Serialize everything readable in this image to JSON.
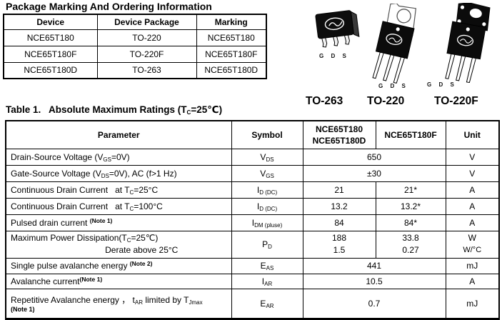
{
  "heading": "Package Marking And Ordering Information",
  "ordering_table": {
    "headers": [
      "Device",
      "Device Package",
      "Marking"
    ],
    "rows": [
      [
        "NCE65T180",
        "TO-220",
        "NCE65T180"
      ],
      [
        "NCE65T180F",
        "TO-220F",
        "NCE65T180F"
      ],
      [
        "NCE65T180D",
        "TO-263",
        "NCE65T180D"
      ]
    ]
  },
  "packages": {
    "pin_label": "G D S",
    "items": [
      {
        "name": "TO-263"
      },
      {
        "name": "TO-220"
      },
      {
        "name": "TO-220F"
      }
    ]
  },
  "ratings_table": {
    "caption": [
      {
        "t": "Table 1.   Absolute Maximum Ratings (T"
      },
      {
        "sub": "C"
      },
      {
        "t": "=25℃)"
      }
    ],
    "headers": {
      "parameter": "Parameter",
      "symbol": "Symbol",
      "col3_line1": "NCE65T180",
      "col3_line2": "NCE65T180D",
      "col4": "NCE65T180F",
      "unit": "Unit"
    },
    "rows": [
      {
        "param": [
          {
            "t": "Drain-Source Voltage (V"
          },
          {
            "sub": "GS"
          },
          {
            "t": "=0V)"
          }
        ],
        "symbol": [
          {
            "t": "V"
          },
          {
            "sub": "DS"
          }
        ],
        "value": "650",
        "unit": "V"
      },
      {
        "param": [
          {
            "t": "Gate-Source Voltage (V"
          },
          {
            "sub": "DS"
          },
          {
            "t": "=0V), AC (f>1 Hz)"
          }
        ],
        "symbol": [
          {
            "t": "V"
          },
          {
            "sub": "GS"
          }
        ],
        "value": "±30",
        "unit": "V"
      },
      {
        "param": [
          {
            "t": "Continuous Drain Current   at T"
          },
          {
            "sub": "C"
          },
          {
            "t": "=25°C"
          }
        ],
        "symbol": [
          {
            "t": "I"
          },
          {
            "sub": "D (DC)"
          }
        ],
        "value1": "21",
        "value2": "21*",
        "unit": "A"
      },
      {
        "param": [
          {
            "t": "Continuous Drain Current   at T"
          },
          {
            "sub": "C"
          },
          {
            "t": "=100°C"
          }
        ],
        "symbol": [
          {
            "t": "I"
          },
          {
            "sub": "D (DC)"
          }
        ],
        "value1": "13.2",
        "value2": "13.2*",
        "unit": "A"
      },
      {
        "param": [
          {
            "t": "Pulsed drain current "
          },
          {
            "sup": "(Note 1)",
            "b": true
          }
        ],
        "symbol": [
          {
            "t": "I"
          },
          {
            "sub": "DM (pluse)"
          }
        ],
        "value1": "84",
        "value2": "84*",
        "unit": "A"
      },
      {
        "param_line1": [
          {
            "t": "Maximum Power Dissipation(T"
          },
          {
            "sub": "C"
          },
          {
            "t": "=25℃)"
          }
        ],
        "param_line2": "Derate above 25°C",
        "symbol": [
          {
            "t": "P"
          },
          {
            "sub": "D"
          }
        ],
        "value1_line1": "188",
        "value1_line2": "1.5",
        "value2_line1": "33.8",
        "value2_line2": "0.27",
        "unit_line1": "W",
        "unit_line2": "W/°C"
      },
      {
        "param": [
          {
            "t": "Single pulse avalanche energy "
          },
          {
            "sup": "(Note 2)",
            "b": true
          }
        ],
        "symbol": [
          {
            "t": "E"
          },
          {
            "sub": "AS"
          }
        ],
        "value": "441",
        "unit": "mJ"
      },
      {
        "param": [
          {
            "t": "Avalanche current"
          },
          {
            "sup": "(Note 1)",
            "b": true
          }
        ],
        "symbol": [
          {
            "t": "I"
          },
          {
            "sub": "AR"
          }
        ],
        "value": "10.5",
        "unit": "A"
      },
      {
        "param_line1": [
          {
            "t": "Repetitive Avalanche energy ， t"
          },
          {
            "sub": "AR"
          },
          {
            "t": " limited by T"
          },
          {
            "sub": "Jmax"
          }
        ],
        "param_line2_note": "(Note 1)",
        "symbol": [
          {
            "t": "E"
          },
          {
            "sub": "AR"
          }
        ],
        "value": "0.7",
        "unit": "mJ"
      }
    ]
  }
}
